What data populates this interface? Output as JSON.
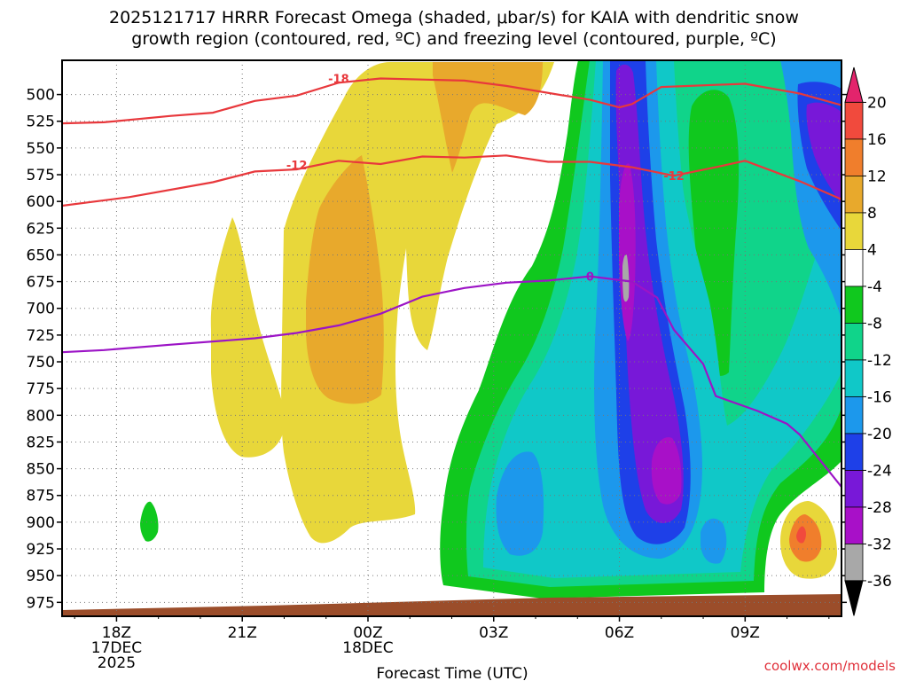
{
  "chart_data": {
    "type": "contour",
    "title_line1": "2025121717 HRRR Forecast Omega (shaded, μbar/s) for KAIA with dendritic snow",
    "title_line2": "growth region (contoured, red, ºC) and freezing level (contoured, purple, ºC)",
    "xlabel": "Forecast Time (UTC)",
    "credit": "coolwx.com/models",
    "x_range_hours": [
      -0.3,
      18.3
    ],
    "y_range_hpa": [
      468,
      988
    ],
    "y_ticks": [
      500,
      525,
      550,
      575,
      600,
      625,
      650,
      675,
      700,
      725,
      750,
      775,
      800,
      825,
      850,
      875,
      900,
      925,
      950,
      975
    ],
    "x_ticks": [
      {
        "hour": 1,
        "lines": [
          "18Z",
          "17DEC",
          "2025"
        ]
      },
      {
        "hour": 4,
        "lines": [
          "21Z"
        ]
      },
      {
        "hour": 7,
        "lines": [
          "00Z",
          "18DEC"
        ]
      },
      {
        "hour": 10,
        "lines": [
          "03Z"
        ]
      },
      {
        "hour": 13,
        "lines": [
          "06Z"
        ]
      },
      {
        "hour": 16,
        "lines": [
          "09Z"
        ]
      }
    ],
    "colorbar": {
      "labels": [
        "20",
        "16",
        "12",
        "8",
        "4",
        "-4",
        "-8",
        "-12",
        "-16",
        "-20",
        "-24",
        "-28",
        "-32",
        "-36"
      ],
      "colors": [
        "#e3246c",
        "#f14a3d",
        "#f07e2c",
        "#e8a92c",
        "#e8d73a",
        "#ffffff",
        "#10c81e",
        "#10d48a",
        "#10c8c8",
        "#1c98ec",
        "#1e40e8",
        "#7818d8",
        "#a810c8",
        "#a8a8a8",
        "#000000"
      ]
    },
    "ground_color": "#9b4d2a",
    "contours": [
      {
        "label": "-18",
        "color": "#e8383c",
        "points": [
          [
            -0.3,
            527
          ],
          [
            0.7,
            526
          ],
          [
            2.3,
            520
          ],
          [
            3.3,
            517
          ],
          [
            4.3,
            506
          ],
          [
            5.3,
            501
          ],
          [
            6.3,
            489
          ],
          [
            7.3,
            485
          ],
          [
            8.3,
            486
          ],
          [
            9.3,
            487
          ],
          [
            10.3,
            492
          ],
          [
            12.3,
            505
          ],
          [
            13.0,
            512
          ],
          [
            13.3,
            509
          ],
          [
            14.0,
            493
          ],
          [
            15.3,
            491
          ],
          [
            16.0,
            490
          ],
          [
            17.3,
            499
          ],
          [
            18.3,
            510
          ]
        ]
      },
      {
        "label": "-12",
        "color": "#e8383c",
        "points": [
          [
            -0.3,
            604
          ],
          [
            1.3,
            596
          ],
          [
            3.3,
            582
          ],
          [
            4.3,
            572
          ],
          [
            5.3,
            570
          ],
          [
            6.3,
            562
          ],
          [
            7.3,
            565
          ],
          [
            8.3,
            558
          ],
          [
            9.3,
            559
          ],
          [
            10.3,
            557
          ],
          [
            11.3,
            563
          ],
          [
            12.3,
            563
          ],
          [
            13.3,
            568
          ],
          [
            14.3,
            576
          ],
          [
            15.3,
            568
          ],
          [
            16.0,
            562
          ],
          [
            17.3,
            581
          ],
          [
            18.3,
            598
          ]
        ]
      },
      {
        "label": "0",
        "color": "#9c14c6",
        "points": [
          [
            -0.3,
            741
          ],
          [
            0.7,
            739
          ],
          [
            2.3,
            734
          ],
          [
            4.3,
            728
          ],
          [
            5.3,
            723
          ],
          [
            6.3,
            716
          ],
          [
            7.3,
            705
          ],
          [
            8.3,
            689
          ],
          [
            9.3,
            681
          ],
          [
            10.3,
            676
          ],
          [
            11.3,
            674
          ],
          [
            12.3,
            670
          ],
          [
            13.3,
            675
          ],
          [
            13.9,
            690
          ],
          [
            14.3,
            720
          ],
          [
            15.0,
            752
          ],
          [
            15.3,
            782
          ],
          [
            16.3,
            796
          ],
          [
            17.0,
            808
          ],
          [
            17.3,
            818
          ],
          [
            18.3,
            867
          ]
        ]
      }
    ]
  }
}
